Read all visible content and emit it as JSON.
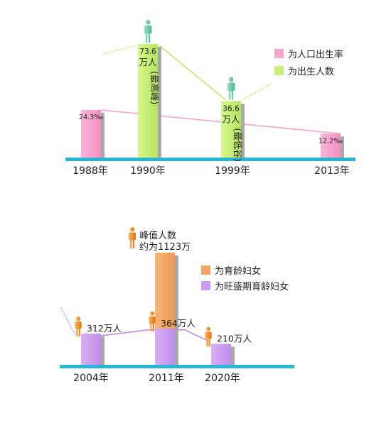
{
  "chart_data": [
    {
      "type": "bar",
      "categories": [
        "1988年",
        "1990年",
        "1999年",
        "2013年"
      ],
      "legend": [
        "为人口出生率",
        "为出生人数"
      ],
      "series": [
        {
          "name": "为人口出生率",
          "color": "#f9a6cf",
          "points": [
            {
              "category": "1988年",
              "value": 24.3,
              "label": "24.3‰"
            },
            {
              "category": "2013年",
              "value": 12.2,
              "label": "12.2‰"
            }
          ]
        },
        {
          "name": "为出生人数",
          "color": "#c6f07a",
          "points": [
            {
              "category": "1990年",
              "value": 73.6,
              "label_lines": [
                "73.6",
                "万人",
                "(最高峰)"
              ]
            },
            {
              "category": "1999年",
              "value": 36.6,
              "label_lines": [
                "36.6",
                "万人",
                "(最低谷)"
              ]
            }
          ]
        }
      ],
      "trend_colors": {
        "rate": "#f3a3cc",
        "births": "#c2e86c"
      },
      "baseline_color": "#2bb6d6"
    },
    {
      "type": "bar",
      "categories": [
        "2004年",
        "2011年",
        "2020年"
      ],
      "legend": [
        "为育龄妇女",
        "为旺盛期育龄妇女"
      ],
      "series": [
        {
          "name": "为旺盛期育龄妇女",
          "color": "#c99cf0",
          "values": [
            312,
            364,
            210
          ],
          "labels": [
            "312万人",
            "364万人",
            "210万人"
          ]
        },
        {
          "name": "为育龄妇女",
          "color": "#f4a765",
          "values": [
            null,
            1123,
            null
          ]
        }
      ],
      "peak_annotation": [
        "峰值人数",
        "约为1123万"
      ],
      "trend_color": "#c28ae8",
      "baseline_color": "#2bb6d6"
    }
  ]
}
